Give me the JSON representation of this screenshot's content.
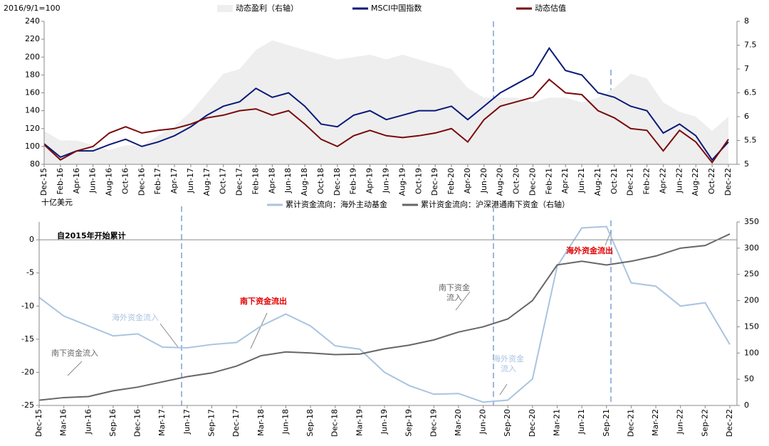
{
  "chart_data": [
    {
      "type": "line",
      "y_label": "2016/9/1=100",
      "categories": [
        "Dec-15",
        "Feb-16",
        "Apr-16",
        "Jun-16",
        "Aug-16",
        "Oct-16",
        "Dec-16",
        "Feb-17",
        "Apr-17",
        "Jun-17",
        "Aug-17",
        "Oct-17",
        "Dec-17",
        "Feb-18",
        "Apr-18",
        "Jun-18",
        "Aug-18",
        "Oct-18",
        "Dec-18",
        "Feb-19",
        "Apr-19",
        "Jun-19",
        "Aug-19",
        "Oct-19",
        "Dec-19",
        "Feb-20",
        "Apr-20",
        "Jun-20",
        "Aug-20",
        "Oct-20",
        "Dec-20",
        "Feb-21",
        "Apr-21",
        "Jun-21",
        "Aug-21",
        "Oct-21",
        "Dec-21",
        "Feb-22",
        "Apr-22",
        "Jun-22",
        "Aug-22",
        "Oct-22",
        "Dec-22"
      ],
      "series": [
        {
          "name": "动态盈利（右轴）",
          "color": "#eeeeee",
          "style": "area",
          "axis": "y2",
          "values": [
            5.7,
            5.5,
            5.5,
            5.4,
            5.3,
            5.4,
            5.4,
            5.6,
            5.8,
            6.1,
            6.5,
            6.9,
            7.0,
            7.4,
            7.6,
            7.5,
            7.4,
            7.3,
            7.2,
            7.25,
            7.3,
            7.2,
            7.3,
            7.2,
            7.1,
            7.0,
            6.6,
            6.4,
            6.4,
            6.4,
            6.3,
            6.4,
            6.4,
            6.3,
            6.4,
            6.6,
            6.9,
            6.8,
            6.3,
            6.1,
            6.0,
            5.7,
            6.0
          ]
        },
        {
          "name": "MSCI中国指数",
          "color": "#0a1a7a",
          "values": [
            103,
            88,
            95,
            95,
            102,
            108,
            100,
            105,
            112,
            122,
            135,
            145,
            150,
            165,
            155,
            160,
            145,
            125,
            122,
            135,
            140,
            130,
            135,
            140,
            140,
            145,
            130,
            145,
            160,
            170,
            180,
            210,
            185,
            180,
            160,
            155,
            145,
            140,
            115,
            125,
            112,
            85,
            105
          ]
        },
        {
          "name": "动态估值",
          "color": "#7a0a0a",
          "values": [
            102,
            85,
            95,
            100,
            115,
            122,
            115,
            118,
            120,
            125,
            132,
            135,
            140,
            142,
            135,
            140,
            125,
            108,
            100,
            112,
            118,
            112,
            110,
            112,
            115,
            120,
            105,
            130,
            145,
            150,
            155,
            175,
            160,
            158,
            140,
            132,
            120,
            118,
            95,
            118,
            105,
            82,
            108
          ]
        }
      ],
      "ylim": [
        80,
        240
      ],
      "yticks": [
        80,
        100,
        120,
        140,
        160,
        180,
        200,
        220,
        240
      ],
      "y2lim": [
        5,
        8
      ],
      "y2ticks": [
        5,
        5.5,
        6,
        6.5,
        7,
        7.5,
        8
      ]
    },
    {
      "type": "line",
      "y_label": "十亿美元",
      "categories": [
        "Dec-15",
        "Mar-16",
        "Jun-16",
        "Sep-16",
        "Dec-16",
        "Mar-17",
        "Jun-17",
        "Sep-17",
        "Dec-17",
        "Mar-18",
        "Jun-18",
        "Sep-18",
        "Dec-18",
        "Mar-19",
        "Jun-19",
        "Sep-19",
        "Dec-19",
        "Mar-20",
        "Jun-20",
        "Sep-20",
        "Dec-20",
        "Mar-21",
        "Jun-21",
        "Sep-21",
        "Dec-21",
        "Mar-22",
        "Jun-22",
        "Sep-22",
        "Dec-22"
      ],
      "series": [
        {
          "name": "累计资金流向：海外主动基金",
          "color": "#a9c4e0",
          "values": [
            -8.7,
            -11.5,
            -13,
            -14.5,
            -14.2,
            -16.2,
            -16.3,
            -15.8,
            -15.5,
            -13,
            -11.2,
            -13,
            -16,
            -16.5,
            -20,
            -22,
            -23.3,
            -23.2,
            -24.5,
            -24.2,
            -21,
            -4,
            1.8,
            2.0,
            -6.5,
            -7,
            -10,
            -9.5,
            -15.8
          ]
        },
        {
          "name": "累计资金流向：沪深港通南下资金（右轴）",
          "color": "#666666",
          "axis": "y2",
          "values": [
            10,
            15,
            17,
            28,
            35,
            45,
            55,
            62,
            75,
            95,
            102,
            100,
            97,
            98,
            108,
            115,
            125,
            140,
            150,
            165,
            200,
            268,
            275,
            268,
            275,
            285,
            300,
            305,
            327
          ]
        }
      ],
      "ylim": [
        -25,
        2.7
      ],
      "yticks": [
        -25,
        -20,
        -15,
        -10,
        -5,
        0
      ],
      "y2lim": [
        0,
        350
      ],
      "y2ticks": [
        0,
        50,
        100,
        150,
        200,
        250,
        300,
        350
      ],
      "annotations": [
        "自2015年开始累计",
        "海外资金流入",
        "南下资金流入",
        "南下资金流出",
        "南下资金流入",
        "海外资金流入",
        "海外资金流出"
      ]
    }
  ]
}
